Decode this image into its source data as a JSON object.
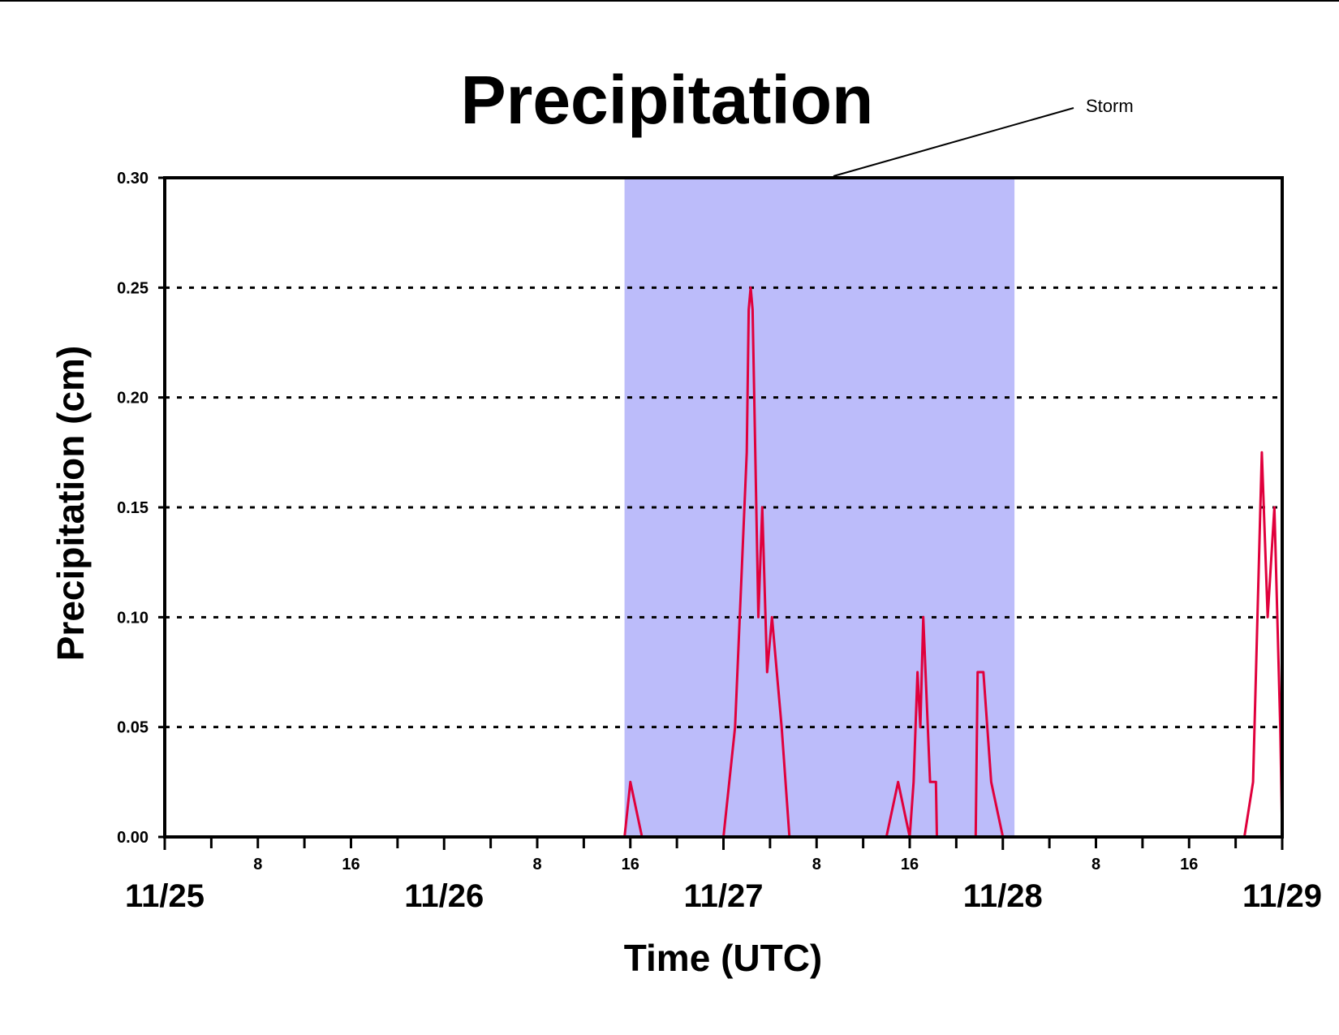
{
  "chart_data": {
    "type": "line",
    "title": "Precipitation",
    "xlabel": "Time (UTC)",
    "ylabel": "Precipitation (cm)",
    "ylim": [
      0,
      0.3
    ],
    "xlim": [
      "11/25 00:00",
      "11/29 00:00"
    ],
    "y_ticks": [
      "0.00",
      "0.05",
      "0.10",
      "0.15",
      "0.20",
      "0.25",
      "0.30"
    ],
    "x_major_ticks": [
      "11/25",
      "11/26",
      "11/27",
      "11/28",
      "11/29"
    ],
    "x_minor_ticks": [
      "8",
      "16",
      "8",
      "16",
      "8",
      "16",
      "8",
      "16"
    ],
    "gridlines": "horizontal dotted",
    "annotation": {
      "text": "Storm",
      "shaded_span": [
        "11/26 15:30",
        "11/28 01:00"
      ],
      "color": "#bcbcfa"
    },
    "series": [
      {
        "color": "#e0003c",
        "points": [
          [
            "11/25 00:00",
            0
          ],
          [
            "11/26 15:30",
            0
          ],
          [
            "11/26 16:00",
            0.025
          ],
          [
            "11/26 17:00",
            0
          ],
          [
            "11/27 00:00",
            0
          ],
          [
            "11/27 01:00",
            0.05
          ],
          [
            "11/27 02:00",
            0.175
          ],
          [
            "11/27 02:10",
            0.24
          ],
          [
            "11/27 02:20",
            0.25
          ],
          [
            "11/27 02:30",
            0.24
          ],
          [
            "11/27 03:00",
            0.1
          ],
          [
            "11/27 03:20",
            0.15
          ],
          [
            "11/27 03:45",
            0.075
          ],
          [
            "11/27 04:10",
            0.1
          ],
          [
            "11/27 05:00",
            0.05
          ],
          [
            "11/27 05:40",
            0
          ],
          [
            "11/27 14:00",
            0
          ],
          [
            "11/27 15:00",
            0.025
          ],
          [
            "11/27 16:00",
            0
          ],
          [
            "11/27 16:20",
            0.025
          ],
          [
            "11/27 16:40",
            0.075
          ],
          [
            "11/27 16:55",
            0.05
          ],
          [
            "11/27 17:10",
            0.1
          ],
          [
            "11/27 17:45",
            0.025
          ],
          [
            "11/27 18:15",
            0.025
          ],
          [
            "11/27 18:20",
            0
          ],
          [
            "11/27 21:40",
            0
          ],
          [
            "11/27 21:50",
            0.075
          ],
          [
            "11/27 22:20",
            0.075
          ],
          [
            "11/27 23:00",
            0.025
          ],
          [
            "11/28 00:00",
            0
          ],
          [
            "11/28 20:45",
            0
          ],
          [
            "11/28 21:30",
            0.025
          ],
          [
            "11/28 22:15",
            0.175
          ],
          [
            "11/28 22:45",
            0.1
          ],
          [
            "11/28 23:20",
            0.15
          ],
          [
            "11/28 23:50",
            0.05
          ],
          [
            "11/29 00:00",
            0
          ]
        ]
      }
    ]
  }
}
